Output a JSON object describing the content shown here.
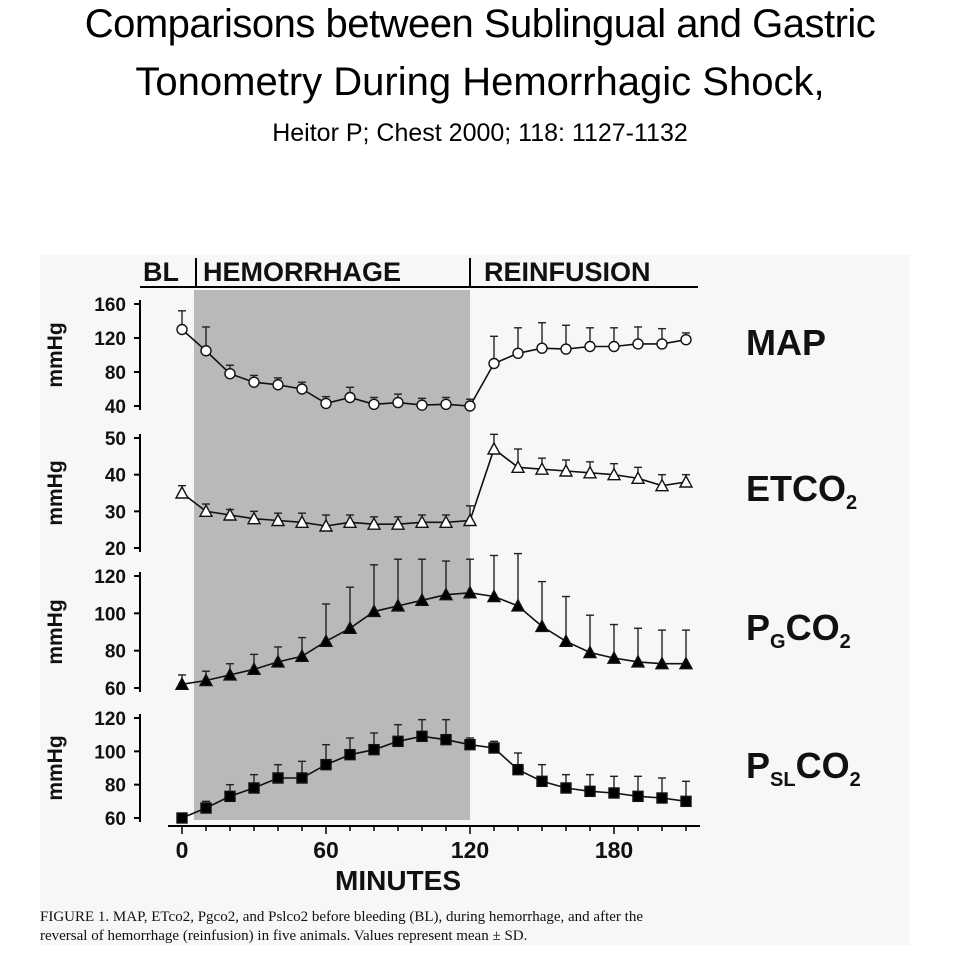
{
  "header": {
    "title_line1": "Comparisons between Sublingual and Gastric",
    "title_line2": "Tonometry During Hemorrhagic Shock,",
    "citation": "Heitor P; Chest 2000; 118: 1127-1132"
  },
  "phases": {
    "bl": "BL",
    "hemorrhage": "HEMORRHAGE",
    "reinfusion": "REINFUSION"
  },
  "caption": {
    "line1": "FIGURE 1. MAP, ETco2, Pgco2, and Pslco2 before bleeding (BL), during hemorrhage, and after the",
    "line2": "reversal of hemorrhage (reinfusion) in five animals. Values represent mean ± SD."
  },
  "colors": {
    "shade": "#b9b9b9",
    "ink": "#000000"
  },
  "chart_data": {
    "type": "line",
    "xlabel": "MINUTES",
    "x_ticks": [
      0,
      60,
      120,
      180
    ],
    "x": [
      0,
      10,
      20,
      30,
      40,
      50,
      60,
      70,
      80,
      90,
      100,
      110,
      120,
      130,
      140,
      150,
      160,
      170,
      180,
      190,
      200,
      210
    ],
    "shaded_range": [
      5,
      120
    ],
    "panels": [
      {
        "name": "MAP",
        "ylabel": "mmHg",
        "ylim": [
          40,
          160
        ],
        "y_ticks": [
          40,
          80,
          120,
          160
        ],
        "marker": "open-circle",
        "values": [
          130,
          105,
          78,
          68,
          65,
          60,
          43,
          50,
          42,
          44,
          41,
          42,
          40,
          90,
          102,
          108,
          107,
          110,
          110,
          113,
          113,
          118
        ],
        "sd": [
          22,
          28,
          10,
          8,
          8,
          8,
          8,
          12,
          8,
          10,
          8,
          8,
          8,
          32,
          30,
          30,
          28,
          22,
          22,
          20,
          18,
          8
        ]
      },
      {
        "name": "ETCO2",
        "label_main": "ETCO",
        "label_sub": "2",
        "ylabel": "mmHg",
        "ylim": [
          20,
          50
        ],
        "y_ticks": [
          20,
          30,
          40,
          50
        ],
        "marker": "open-triangle",
        "values": [
          35,
          30,
          29,
          28,
          27.5,
          27,
          26,
          27,
          26.5,
          26.5,
          27,
          27,
          27.5,
          47,
          42,
          41.5,
          41,
          40.5,
          40,
          39,
          37,
          38
        ],
        "sd": [
          2,
          2,
          1.5,
          2,
          2,
          2.5,
          3,
          2,
          2,
          2,
          2,
          2,
          4,
          4,
          5,
          3,
          3,
          3,
          3,
          3,
          3,
          2
        ]
      },
      {
        "name": "PGCO2",
        "label_main": "P",
        "label_sub": "G",
        "label_tail": "CO",
        "label_tail_sub": "2",
        "ylabel": "mmHg",
        "ylim": [
          60,
          120
        ],
        "y_ticks": [
          60,
          80,
          100,
          120
        ],
        "marker": "filled-triangle",
        "values": [
          62,
          64,
          67,
          70,
          74,
          77,
          85,
          92,
          101,
          104,
          107,
          110,
          111,
          109,
          104,
          93,
          85,
          79,
          76,
          74,
          73,
          73
        ],
        "sd": [
          5,
          5,
          6,
          8,
          8,
          10,
          20,
          22,
          25,
          25,
          22,
          18,
          18,
          22,
          28,
          24,
          24,
          20,
          18,
          18,
          18,
          18
        ]
      },
      {
        "name": "PSLCO2",
        "label_main": "P",
        "label_sub": "SL",
        "label_tail": "CO",
        "label_tail_sub": "2",
        "ylabel": "mmHg",
        "ylim": [
          60,
          120
        ],
        "y_ticks": [
          60,
          80,
          100,
          120
        ],
        "marker": "filled-square",
        "values": [
          60,
          66,
          73,
          78,
          84,
          84,
          92,
          98,
          101,
          106,
          109,
          107,
          104,
          102,
          89,
          82,
          78,
          76,
          75,
          73,
          72,
          70
        ],
        "sd": [
          2,
          4,
          7,
          8,
          8,
          10,
          12,
          10,
          10,
          10,
          10,
          12,
          4,
          4,
          10,
          10,
          8,
          10,
          10,
          12,
          12,
          12
        ]
      }
    ]
  }
}
